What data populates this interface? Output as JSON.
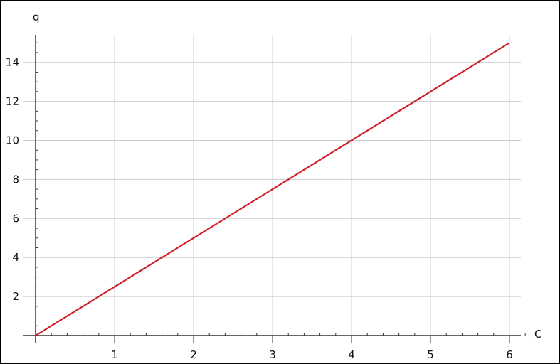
{
  "chart_data": {
    "type": "line",
    "title": "",
    "xlabel": "C",
    "ylabel": "q",
    "xlim": [
      0,
      6
    ],
    "ylim": [
      0,
      15
    ],
    "x_ticks": [
      1,
      2,
      3,
      4,
      5,
      6
    ],
    "y_ticks": [
      2,
      4,
      6,
      8,
      10,
      12,
      14
    ],
    "x_minor_step": 0.2,
    "y_minor_step": 0.5,
    "grid": true,
    "series": [
      {
        "color": "#d0202a",
        "x": [
          0,
          6
        ],
        "y": [
          0,
          15
        ]
      }
    ],
    "colors": {
      "grid": "#cccccc",
      "axis": "#333333"
    }
  }
}
